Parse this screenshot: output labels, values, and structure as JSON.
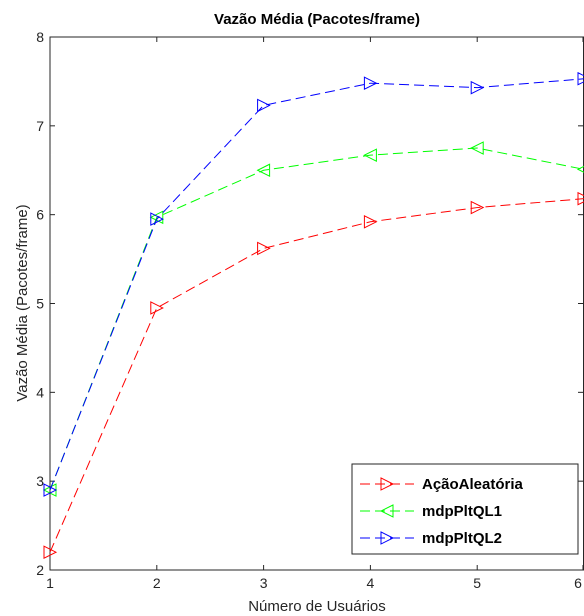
{
  "chart_data": {
    "type": "line",
    "title": "Vazão Média (Pacotes/frame)",
    "xlabel": "Número de Usuários",
    "ylabel": "Vazão Média (Pacotes/frame)",
    "x": [
      1,
      2,
      3,
      4,
      5,
      6
    ],
    "xlim": [
      1,
      6
    ],
    "ylim": [
      2,
      8
    ],
    "xticks": [
      "1",
      "2",
      "3",
      "4",
      "5",
      "6"
    ],
    "yticks": [
      "2",
      "3",
      "4",
      "5",
      "6",
      "7",
      "8"
    ],
    "grid": false,
    "legend_position": "bottom-right",
    "series": [
      {
        "name": "AçãoAleatória",
        "values": [
          2.2,
          4.95,
          5.62,
          5.92,
          6.08,
          6.18
        ],
        "color": "#ff0000",
        "marker": "triangle-right"
      },
      {
        "name": "mdpPltQL1",
        "values": [
          2.9,
          5.97,
          6.5,
          6.67,
          6.75,
          6.51
        ],
        "color": "#00ff00",
        "marker": "triangle-left"
      },
      {
        "name": "mdpPltQL2",
        "values": [
          2.9,
          5.95,
          7.23,
          7.48,
          7.43,
          7.53
        ],
        "color": "#0000ff",
        "marker": "triangle-right"
      }
    ]
  }
}
